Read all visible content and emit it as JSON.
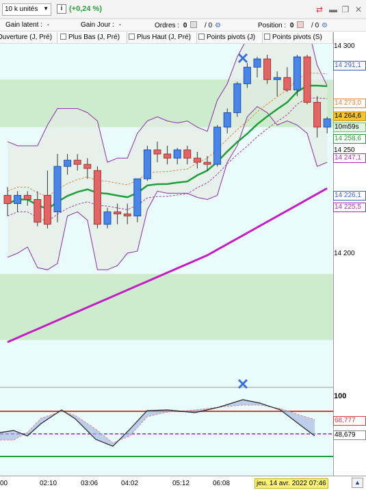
{
  "toolbar": {
    "quantity_value": "10 k unités",
    "info_label": "i",
    "change_value": "(+0,24 %)"
  },
  "position_bar": {
    "gain_latent_label": "Gain latent :",
    "gain_latent_value": "-",
    "gain_jour_label": "Gain Jour :",
    "gain_jour_value": "-",
    "ordres_label": "Ordres :",
    "ordres_value": "0",
    "ordres_sep": "/ 0",
    "position_label": "Position :",
    "position_value": "0",
    "position_sep": "/ 0"
  },
  "indicator_tabs": [
    {
      "label": "Ouverture (J, Pré)"
    },
    {
      "label": "Plus Bas (J, Pré)"
    },
    {
      "label": "Plus Haut (J, Pré)"
    },
    {
      "label": "Points pivots (J)"
    },
    {
      "label": "Points pivots (S)"
    }
  ],
  "price_axis": {
    "ticks": [
      "14 300",
      "14 250",
      "14 200"
    ],
    "tags": [
      {
        "value": "14 291,1",
        "color": "#3b5fc9"
      },
      {
        "value": "14 273,0",
        "color": "#e0853a"
      },
      {
        "value": "14 264,6",
        "color": "#000000",
        "bg": "#f4c430"
      },
      {
        "value": "10m59s",
        "color": "#000000",
        "bg": "#dff5df"
      },
      {
        "value": "14 258,6",
        "color": "#1f9d3a"
      },
      {
        "value": "14 247,1",
        "color": "#b02cb0"
      },
      {
        "value": "14 226,1",
        "color": "#3b5fc9"
      },
      {
        "value": "14 225,5",
        "color": "#b02cb0"
      }
    ]
  },
  "oscillator_axis": {
    "tick": "100",
    "tags": [
      {
        "value": "68,777",
        "color": "#d63a3a"
      },
      {
        "value": "48,679",
        "color": "#000000"
      }
    ]
  },
  "time_axis": {
    "ticks": [
      "00",
      "02:10",
      "03:06",
      "04:02",
      "05:12",
      "06:08"
    ],
    "current_date": "jeu. 14 avr. 2022 07:46"
  },
  "chart_data": {
    "type": "candlestick",
    "candles": [
      {
        "o": 14228,
        "h": 14232,
        "l": 14218,
        "c": 14224
      },
      {
        "o": 14224,
        "h": 14230,
        "l": 14220,
        "c": 14228
      },
      {
        "o": 14228,
        "h": 14230,
        "l": 14223,
        "c": 14226
      },
      {
        "o": 14226,
        "h": 14230,
        "l": 14213,
        "c": 14215
      },
      {
        "o": 14228,
        "h": 14240,
        "l": 14212,
        "c": 14214
      },
      {
        "o": 14220,
        "h": 14248,
        "l": 14215,
        "c": 14242
      },
      {
        "o": 14242,
        "h": 14248,
        "l": 14238,
        "c": 14245
      },
      {
        "o": 14245,
        "h": 14248,
        "l": 14240,
        "c": 14243
      },
      {
        "o": 14243,
        "h": 14246,
        "l": 14236,
        "c": 14241
      },
      {
        "o": 14240,
        "h": 14242,
        "l": 14212,
        "c": 14214
      },
      {
        "o": 14214,
        "h": 14222,
        "l": 14212,
        "c": 14220
      },
      {
        "o": 14220,
        "h": 14224,
        "l": 14214,
        "c": 14219
      },
      {
        "o": 14219,
        "h": 14224,
        "l": 14214,
        "c": 14218
      },
      {
        "o": 14218,
        "h": 14236,
        "l": 14215,
        "c": 14236
      },
      {
        "o": 14236,
        "h": 14252,
        "l": 14235,
        "c": 14250
      },
      {
        "o": 14250,
        "h": 14254,
        "l": 14244,
        "c": 14248
      },
      {
        "o": 14248,
        "h": 14252,
        "l": 14243,
        "c": 14246
      },
      {
        "o": 14246,
        "h": 14251,
        "l": 14243,
        "c": 14250
      },
      {
        "o": 14250,
        "h": 14252,
        "l": 14243,
        "c": 14246
      },
      {
        "o": 14246,
        "h": 14249,
        "l": 14241,
        "c": 14244
      },
      {
        "o": 14244,
        "h": 14247,
        "l": 14240,
        "c": 14243
      },
      {
        "o": 14243,
        "h": 14262,
        "l": 14242,
        "c": 14261
      },
      {
        "o": 14261,
        "h": 14270,
        "l": 14258,
        "c": 14268
      },
      {
        "o": 14268,
        "h": 14283,
        "l": 14266,
        "c": 14282
      },
      {
        "o": 14282,
        "h": 14292,
        "l": 14280,
        "c": 14290
      },
      {
        "o": 14290,
        "h": 14295,
        "l": 14285,
        "c": 14294
      },
      {
        "o": 14294,
        "h": 14296,
        "l": 14282,
        "c": 14284
      },
      {
        "o": 14284,
        "h": 14288,
        "l": 14276,
        "c": 14285
      },
      {
        "o": 14285,
        "h": 14290,
        "l": 14278,
        "c": 14279
      },
      {
        "o": 14279,
        "h": 14296,
        "l": 14276,
        "c": 14295
      },
      {
        "o": 14295,
        "h": 14296,
        "l": 14272,
        "c": 14273
      },
      {
        "o": 14273,
        "h": 14276,
        "l": 14256,
        "c": 14261
      },
      {
        "o": 14261,
        "h": 14266,
        "l": 14258,
        "c": 14265
      }
    ],
    "ylim": [
      14140,
      14310
    ]
  }
}
